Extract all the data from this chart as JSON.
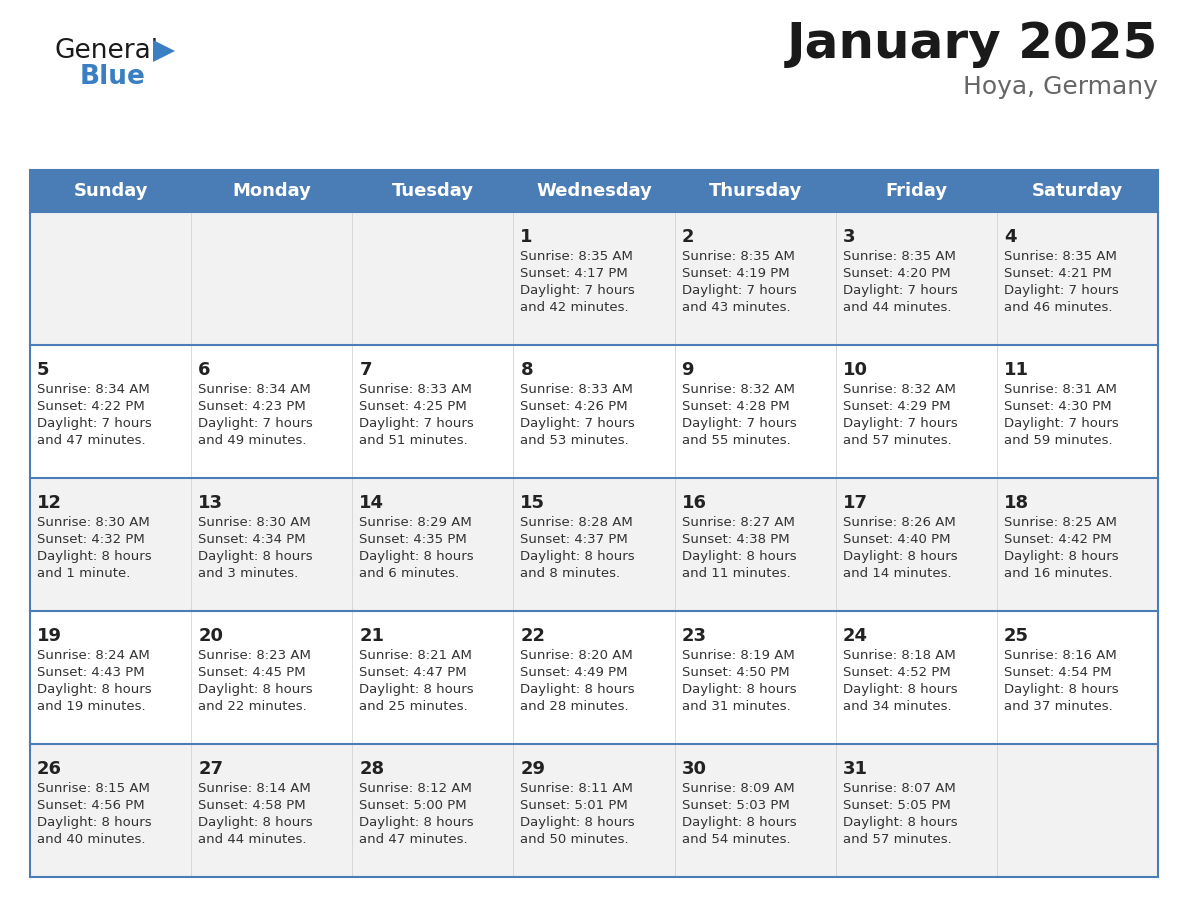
{
  "title": "January 2025",
  "subtitle": "Hoya, Germany",
  "days_of_week": [
    "Sunday",
    "Monday",
    "Tuesday",
    "Wednesday",
    "Thursday",
    "Friday",
    "Saturday"
  ],
  "header_bg": "#4a7db5",
  "header_text_color": "#ffffff",
  "row_bg_odd": "#f2f2f2",
  "row_bg_even": "#ffffff",
  "cell_text_color": "#333333",
  "day_num_color": "#222222",
  "divider_color": "#4a7db5",
  "calendar_data": [
    [
      {
        "day": null,
        "sunrise": null,
        "sunset": null,
        "daylight": null
      },
      {
        "day": null,
        "sunrise": null,
        "sunset": null,
        "daylight": null
      },
      {
        "day": null,
        "sunrise": null,
        "sunset": null,
        "daylight": null
      },
      {
        "day": 1,
        "sunrise": "8:35 AM",
        "sunset": "4:17 PM",
        "daylight": "7 hours\nand 42 minutes."
      },
      {
        "day": 2,
        "sunrise": "8:35 AM",
        "sunset": "4:19 PM",
        "daylight": "7 hours\nand 43 minutes."
      },
      {
        "day": 3,
        "sunrise": "8:35 AM",
        "sunset": "4:20 PM",
        "daylight": "7 hours\nand 44 minutes."
      },
      {
        "day": 4,
        "sunrise": "8:35 AM",
        "sunset": "4:21 PM",
        "daylight": "7 hours\nand 46 minutes."
      }
    ],
    [
      {
        "day": 5,
        "sunrise": "8:34 AM",
        "sunset": "4:22 PM",
        "daylight": "7 hours\nand 47 minutes."
      },
      {
        "day": 6,
        "sunrise": "8:34 AM",
        "sunset": "4:23 PM",
        "daylight": "7 hours\nand 49 minutes."
      },
      {
        "day": 7,
        "sunrise": "8:33 AM",
        "sunset": "4:25 PM",
        "daylight": "7 hours\nand 51 minutes."
      },
      {
        "day": 8,
        "sunrise": "8:33 AM",
        "sunset": "4:26 PM",
        "daylight": "7 hours\nand 53 minutes."
      },
      {
        "day": 9,
        "sunrise": "8:32 AM",
        "sunset": "4:28 PM",
        "daylight": "7 hours\nand 55 minutes."
      },
      {
        "day": 10,
        "sunrise": "8:32 AM",
        "sunset": "4:29 PM",
        "daylight": "7 hours\nand 57 minutes."
      },
      {
        "day": 11,
        "sunrise": "8:31 AM",
        "sunset": "4:30 PM",
        "daylight": "7 hours\nand 59 minutes."
      }
    ],
    [
      {
        "day": 12,
        "sunrise": "8:30 AM",
        "sunset": "4:32 PM",
        "daylight": "8 hours\nand 1 minute."
      },
      {
        "day": 13,
        "sunrise": "8:30 AM",
        "sunset": "4:34 PM",
        "daylight": "8 hours\nand 3 minutes."
      },
      {
        "day": 14,
        "sunrise": "8:29 AM",
        "sunset": "4:35 PM",
        "daylight": "8 hours\nand 6 minutes."
      },
      {
        "day": 15,
        "sunrise": "8:28 AM",
        "sunset": "4:37 PM",
        "daylight": "8 hours\nand 8 minutes."
      },
      {
        "day": 16,
        "sunrise": "8:27 AM",
        "sunset": "4:38 PM",
        "daylight": "8 hours\nand 11 minutes."
      },
      {
        "day": 17,
        "sunrise": "8:26 AM",
        "sunset": "4:40 PM",
        "daylight": "8 hours\nand 14 minutes."
      },
      {
        "day": 18,
        "sunrise": "8:25 AM",
        "sunset": "4:42 PM",
        "daylight": "8 hours\nand 16 minutes."
      }
    ],
    [
      {
        "day": 19,
        "sunrise": "8:24 AM",
        "sunset": "4:43 PM",
        "daylight": "8 hours\nand 19 minutes."
      },
      {
        "day": 20,
        "sunrise": "8:23 AM",
        "sunset": "4:45 PM",
        "daylight": "8 hours\nand 22 minutes."
      },
      {
        "day": 21,
        "sunrise": "8:21 AM",
        "sunset": "4:47 PM",
        "daylight": "8 hours\nand 25 minutes."
      },
      {
        "day": 22,
        "sunrise": "8:20 AM",
        "sunset": "4:49 PM",
        "daylight": "8 hours\nand 28 minutes."
      },
      {
        "day": 23,
        "sunrise": "8:19 AM",
        "sunset": "4:50 PM",
        "daylight": "8 hours\nand 31 minutes."
      },
      {
        "day": 24,
        "sunrise": "8:18 AM",
        "sunset": "4:52 PM",
        "daylight": "8 hours\nand 34 minutes."
      },
      {
        "day": 25,
        "sunrise": "8:16 AM",
        "sunset": "4:54 PM",
        "daylight": "8 hours\nand 37 minutes."
      }
    ],
    [
      {
        "day": 26,
        "sunrise": "8:15 AM",
        "sunset": "4:56 PM",
        "daylight": "8 hours\nand 40 minutes."
      },
      {
        "day": 27,
        "sunrise": "8:14 AM",
        "sunset": "4:58 PM",
        "daylight": "8 hours\nand 44 minutes."
      },
      {
        "day": 28,
        "sunrise": "8:12 AM",
        "sunset": "5:00 PM",
        "daylight": "8 hours\nand 47 minutes."
      },
      {
        "day": 29,
        "sunrise": "8:11 AM",
        "sunset": "5:01 PM",
        "daylight": "8 hours\nand 50 minutes."
      },
      {
        "day": 30,
        "sunrise": "8:09 AM",
        "sunset": "5:03 PM",
        "daylight": "8 hours\nand 54 minutes."
      },
      {
        "day": 31,
        "sunrise": "8:07 AM",
        "sunset": "5:05 PM",
        "daylight": "8 hours\nand 57 minutes."
      },
      {
        "day": null,
        "sunrise": null,
        "sunset": null,
        "daylight": null
      }
    ]
  ],
  "logo_text_general": "General",
  "logo_text_blue": "Blue",
  "logo_color_general": "#1a1a1a",
  "logo_color_blue": "#3a7fc1",
  "logo_triangle_color": "#3a7fc1",
  "title_fontsize": 36,
  "subtitle_fontsize": 18,
  "header_fontsize": 13,
  "day_num_fontsize": 13,
  "cell_fontsize": 9.5
}
